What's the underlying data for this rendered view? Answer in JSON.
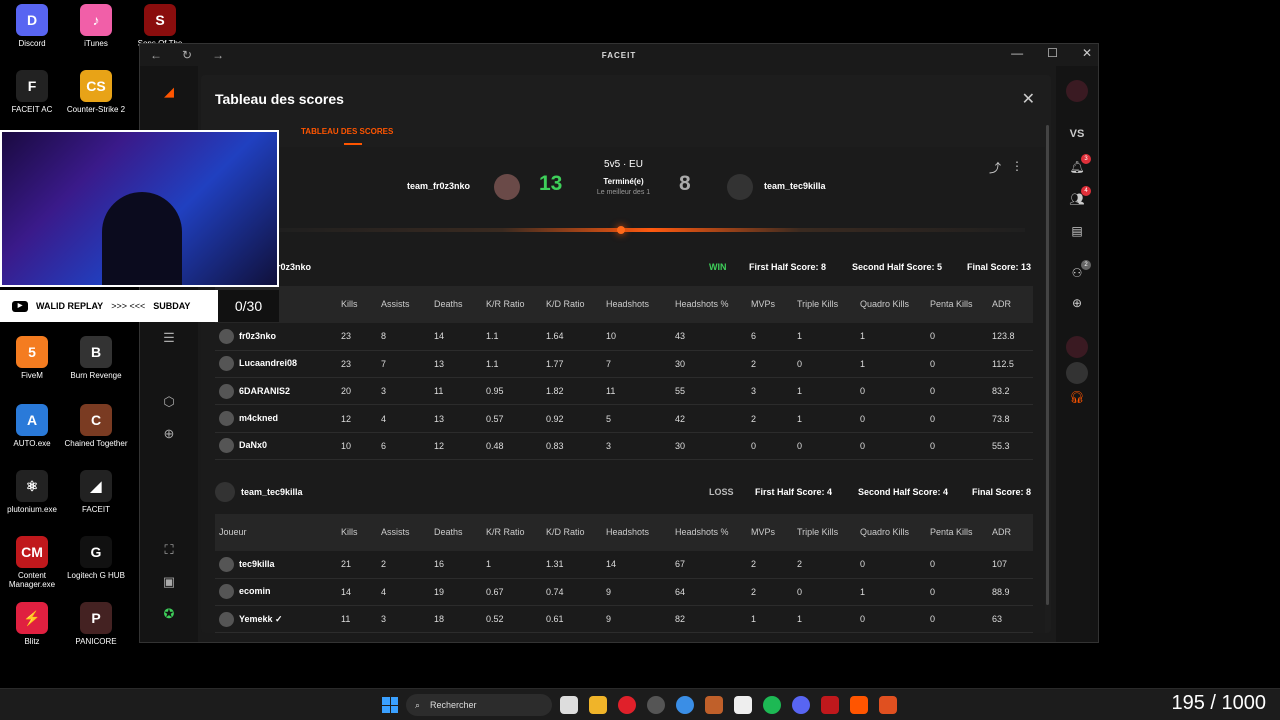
{
  "desktop": {
    "icons": [
      {
        "label": "Discord",
        "color": "#5865F2",
        "glyph": "D"
      },
      {
        "label": "iTunes",
        "color": "#f15fa8",
        "glyph": "♪"
      },
      {
        "label": "Sons Of The",
        "color": "#8a0d0d",
        "glyph": "S"
      },
      {
        "label": "FACEIT AC",
        "color": "#222222",
        "glyph": "F"
      },
      {
        "label": "Counter-Strike 2",
        "color": "#e8a317",
        "glyph": "CS"
      },
      {
        "label": "FiveM",
        "color": "#f47c20",
        "glyph": "5"
      },
      {
        "label": "Burn Revenge",
        "color": "#333333",
        "glyph": "B"
      },
      {
        "label": "AUTO.exe",
        "color": "#2a7ad9",
        "glyph": "A"
      },
      {
        "label": "Chained Together",
        "color": "#7a3b22",
        "glyph": "C"
      },
      {
        "label": "plutonium.exe",
        "color": "#222222",
        "glyph": "⚛"
      },
      {
        "label": "FACEIT",
        "color": "#222222",
        "glyph": "◢"
      },
      {
        "label": "Content Manager.exe",
        "color": "#c0181c",
        "glyph": "CM"
      },
      {
        "label": "Logitech G HUB",
        "color": "#111111",
        "glyph": "G"
      },
      {
        "label": "Blitz",
        "color": "#e02040",
        "glyph": "⚡"
      },
      {
        "label": "PANICORE",
        "color": "#442222",
        "glyph": "P"
      }
    ]
  },
  "window": {
    "title": "FACEIT",
    "nav": {
      "back": "←",
      "refresh": "↻",
      "forward": "→"
    },
    "controls": {
      "minimize": "—",
      "maximize": "☐",
      "close": "✕"
    }
  },
  "modal": {
    "title": "Tableau des scores",
    "close": "✕",
    "tab": "TABLEAU DES SCORES"
  },
  "match": {
    "team1": "team_fr0z3nko",
    "team2": "team_tec9killa",
    "score1": "13",
    "score2": "8",
    "mode": "5v5 · EU",
    "status": "Terminé(e)",
    "format": "Le meilleur des 1",
    "share_icon": "⤴",
    "menu_icon": "⋮"
  },
  "team1_header": {
    "name_partial": "r0z3nko",
    "result": "WIN",
    "first_half": "First Half Score: 8",
    "second_half": "Second Half Score: 5",
    "final": "Final Score: 13"
  },
  "team2_header": {
    "name": "team_tec9killa",
    "result": "LOSS",
    "first_half": "First Half Score: 4",
    "second_half": "Second Half Score: 4",
    "final": "Final Score: 8"
  },
  "columns": [
    "Joueur",
    "Kills",
    "Assists",
    "Deaths",
    "K/R Ratio",
    "K/D Ratio",
    "Headshots",
    "Headshots %",
    "MVPs",
    "Triple Kills",
    "Quadro Kills",
    "Penta Kills",
    "ADR"
  ],
  "team1_rows": [
    [
      "fr0z3nko",
      "23",
      "8",
      "14",
      "1.1",
      "1.64",
      "10",
      "43",
      "6",
      "1",
      "1",
      "0",
      "123.8"
    ],
    [
      "Lucaandrei08",
      "23",
      "7",
      "13",
      "1.1",
      "1.77",
      "7",
      "30",
      "2",
      "0",
      "1",
      "0",
      "112.5"
    ],
    [
      "6DARANIS2",
      "20",
      "3",
      "11",
      "0.95",
      "1.82",
      "11",
      "55",
      "3",
      "1",
      "0",
      "0",
      "83.2"
    ],
    [
      "m4ckned",
      "12",
      "4",
      "13",
      "0.57",
      "0.92",
      "5",
      "42",
      "2",
      "1",
      "0",
      "0",
      "73.8"
    ],
    [
      "DaNx0",
      "10",
      "6",
      "12",
      "0.48",
      "0.83",
      "3",
      "30",
      "0",
      "0",
      "0",
      "0",
      "55.3"
    ]
  ],
  "team2_rows": [
    [
      "tec9killa",
      "21",
      "2",
      "16",
      "1",
      "1.31",
      "14",
      "67",
      "2",
      "2",
      "0",
      "0",
      "107"
    ],
    [
      "ecomin",
      "14",
      "4",
      "19",
      "0.67",
      "0.74",
      "9",
      "64",
      "2",
      "0",
      "1",
      "0",
      "88.9"
    ],
    [
      "Yemekk ✓",
      "11",
      "3",
      "18",
      "0.52",
      "0.61",
      "9",
      "82",
      "1",
      "1",
      "0",
      "0",
      "63"
    ]
  ],
  "rightnav": {
    "vs": "VS",
    "notif_badge": "3",
    "friends_badge": "4",
    "party_badge": "2"
  },
  "stream": {
    "channel": "WALID REPLAY",
    "arrows": ">>> <<<",
    "code": "SUBDAY",
    "count": "0/30"
  },
  "taskbar": {
    "search": "Rechercher",
    "tray_text": "195 / 1000"
  }
}
